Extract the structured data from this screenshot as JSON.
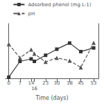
{
  "chart_data": {
    "type": "line",
    "x": [
      0,
      7,
      14,
      16,
      23,
      30,
      38,
      45,
      53
    ],
    "xlabel": "Time (days)",
    "xlim": [
      -2,
      56
    ],
    "xticks": [
      0,
      7,
      14,
      16,
      23,
      30,
      38,
      45,
      53
    ],
    "ylim": [
      0,
      0.9
    ],
    "y2lim": [
      5.5,
      9.5
    ],
    "tick_labels": "x",
    "grid": false,
    "legend": "top",
    "series": [
      {
        "name": "Adsorbed phenol (mg L-1)",
        "color": "#333333",
        "values": [
          0.02,
          0.28,
          0.32,
          0.28,
          0.38,
          0.48,
          0.58,
          0.44,
          0.5
        ],
        "marker": "square",
        "line_style": "solid"
      },
      {
        "name": "pH",
        "color": "#555555",
        "values": [
          8.0,
          7.0,
          7.6,
          7.3,
          6.7,
          7.0,
          6.8,
          6.3,
          8.1
        ],
        "marker": "triangle",
        "line_style": "dashed",
        "axis": "y2"
      }
    ]
  }
}
